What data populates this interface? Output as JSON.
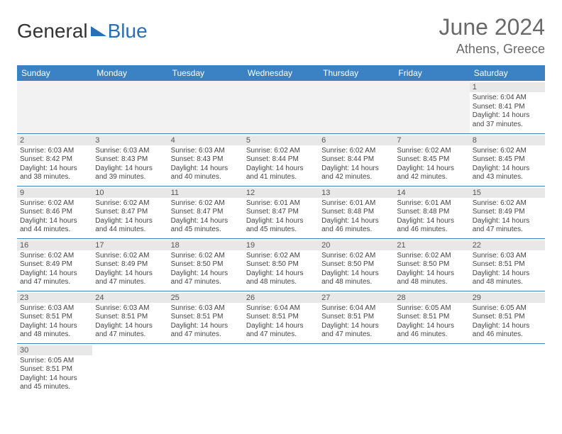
{
  "brand": {
    "part1": "General",
    "part2": "Blue"
  },
  "title": "June 2024",
  "location": "Athens, Greece",
  "colors": {
    "header_bg": "#3b82c4",
    "header_fg": "#ffffff",
    "daynum_bg": "#e8e8e8",
    "border": "#3b82c4",
    "title_color": "#6a6a6a",
    "brand_blue": "#2a6fb5"
  },
  "weekdays": [
    "Sunday",
    "Monday",
    "Tuesday",
    "Wednesday",
    "Thursday",
    "Friday",
    "Saturday"
  ],
  "weeks": [
    [
      {
        "blank": true
      },
      {
        "blank": true
      },
      {
        "blank": true
      },
      {
        "blank": true
      },
      {
        "blank": true
      },
      {
        "blank": true
      },
      {
        "day": "1",
        "sunrise": "Sunrise: 6:04 AM",
        "sunset": "Sunset: 8:41 PM",
        "daylight": "Daylight: 14 hours and 37 minutes."
      }
    ],
    [
      {
        "day": "2",
        "sunrise": "Sunrise: 6:03 AM",
        "sunset": "Sunset: 8:42 PM",
        "daylight": "Daylight: 14 hours and 38 minutes."
      },
      {
        "day": "3",
        "sunrise": "Sunrise: 6:03 AM",
        "sunset": "Sunset: 8:43 PM",
        "daylight": "Daylight: 14 hours and 39 minutes."
      },
      {
        "day": "4",
        "sunrise": "Sunrise: 6:03 AM",
        "sunset": "Sunset: 8:43 PM",
        "daylight": "Daylight: 14 hours and 40 minutes."
      },
      {
        "day": "5",
        "sunrise": "Sunrise: 6:02 AM",
        "sunset": "Sunset: 8:44 PM",
        "daylight": "Daylight: 14 hours and 41 minutes."
      },
      {
        "day": "6",
        "sunrise": "Sunrise: 6:02 AM",
        "sunset": "Sunset: 8:44 PM",
        "daylight": "Daylight: 14 hours and 42 minutes."
      },
      {
        "day": "7",
        "sunrise": "Sunrise: 6:02 AM",
        "sunset": "Sunset: 8:45 PM",
        "daylight": "Daylight: 14 hours and 42 minutes."
      },
      {
        "day": "8",
        "sunrise": "Sunrise: 6:02 AM",
        "sunset": "Sunset: 8:45 PM",
        "daylight": "Daylight: 14 hours and 43 minutes."
      }
    ],
    [
      {
        "day": "9",
        "sunrise": "Sunrise: 6:02 AM",
        "sunset": "Sunset: 8:46 PM",
        "daylight": "Daylight: 14 hours and 44 minutes."
      },
      {
        "day": "10",
        "sunrise": "Sunrise: 6:02 AM",
        "sunset": "Sunset: 8:47 PM",
        "daylight": "Daylight: 14 hours and 44 minutes."
      },
      {
        "day": "11",
        "sunrise": "Sunrise: 6:02 AM",
        "sunset": "Sunset: 8:47 PM",
        "daylight": "Daylight: 14 hours and 45 minutes."
      },
      {
        "day": "12",
        "sunrise": "Sunrise: 6:01 AM",
        "sunset": "Sunset: 8:47 PM",
        "daylight": "Daylight: 14 hours and 45 minutes."
      },
      {
        "day": "13",
        "sunrise": "Sunrise: 6:01 AM",
        "sunset": "Sunset: 8:48 PM",
        "daylight": "Daylight: 14 hours and 46 minutes."
      },
      {
        "day": "14",
        "sunrise": "Sunrise: 6:01 AM",
        "sunset": "Sunset: 8:48 PM",
        "daylight": "Daylight: 14 hours and 46 minutes."
      },
      {
        "day": "15",
        "sunrise": "Sunrise: 6:02 AM",
        "sunset": "Sunset: 8:49 PM",
        "daylight": "Daylight: 14 hours and 47 minutes."
      }
    ],
    [
      {
        "day": "16",
        "sunrise": "Sunrise: 6:02 AM",
        "sunset": "Sunset: 8:49 PM",
        "daylight": "Daylight: 14 hours and 47 minutes."
      },
      {
        "day": "17",
        "sunrise": "Sunrise: 6:02 AM",
        "sunset": "Sunset: 8:49 PM",
        "daylight": "Daylight: 14 hours and 47 minutes."
      },
      {
        "day": "18",
        "sunrise": "Sunrise: 6:02 AM",
        "sunset": "Sunset: 8:50 PM",
        "daylight": "Daylight: 14 hours and 47 minutes."
      },
      {
        "day": "19",
        "sunrise": "Sunrise: 6:02 AM",
        "sunset": "Sunset: 8:50 PM",
        "daylight": "Daylight: 14 hours and 48 minutes."
      },
      {
        "day": "20",
        "sunrise": "Sunrise: 6:02 AM",
        "sunset": "Sunset: 8:50 PM",
        "daylight": "Daylight: 14 hours and 48 minutes."
      },
      {
        "day": "21",
        "sunrise": "Sunrise: 6:02 AM",
        "sunset": "Sunset: 8:50 PM",
        "daylight": "Daylight: 14 hours and 48 minutes."
      },
      {
        "day": "22",
        "sunrise": "Sunrise: 6:03 AM",
        "sunset": "Sunset: 8:51 PM",
        "daylight": "Daylight: 14 hours and 48 minutes."
      }
    ],
    [
      {
        "day": "23",
        "sunrise": "Sunrise: 6:03 AM",
        "sunset": "Sunset: 8:51 PM",
        "daylight": "Daylight: 14 hours and 48 minutes."
      },
      {
        "day": "24",
        "sunrise": "Sunrise: 6:03 AM",
        "sunset": "Sunset: 8:51 PM",
        "daylight": "Daylight: 14 hours and 47 minutes."
      },
      {
        "day": "25",
        "sunrise": "Sunrise: 6:03 AM",
        "sunset": "Sunset: 8:51 PM",
        "daylight": "Daylight: 14 hours and 47 minutes."
      },
      {
        "day": "26",
        "sunrise": "Sunrise: 6:04 AM",
        "sunset": "Sunset: 8:51 PM",
        "daylight": "Daylight: 14 hours and 47 minutes."
      },
      {
        "day": "27",
        "sunrise": "Sunrise: 6:04 AM",
        "sunset": "Sunset: 8:51 PM",
        "daylight": "Daylight: 14 hours and 47 minutes."
      },
      {
        "day": "28",
        "sunrise": "Sunrise: 6:05 AM",
        "sunset": "Sunset: 8:51 PM",
        "daylight": "Daylight: 14 hours and 46 minutes."
      },
      {
        "day": "29",
        "sunrise": "Sunrise: 6:05 AM",
        "sunset": "Sunset: 8:51 PM",
        "daylight": "Daylight: 14 hours and 46 minutes."
      }
    ],
    [
      {
        "day": "30",
        "sunrise": "Sunrise: 6:05 AM",
        "sunset": "Sunset: 8:51 PM",
        "daylight": "Daylight: 14 hours and 45 minutes."
      },
      {
        "blank": true
      },
      {
        "blank": true
      },
      {
        "blank": true
      },
      {
        "blank": true
      },
      {
        "blank": true
      },
      {
        "blank": true
      }
    ]
  ]
}
